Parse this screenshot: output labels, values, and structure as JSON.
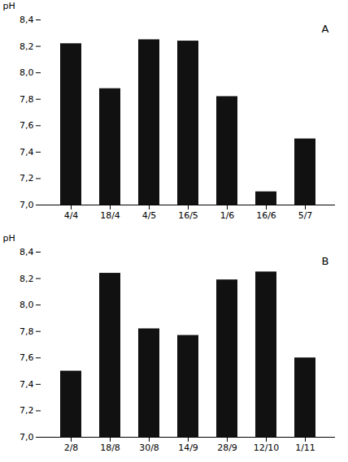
{
  "chart_data": [
    {
      "type": "bar",
      "annotation": "A",
      "ylabel": "pH",
      "categories": [
        "4/4",
        "18/4",
        "4/5",
        "16/5",
        "1/6",
        "16/6",
        "5/7"
      ],
      "values": [
        8.22,
        7.88,
        8.25,
        8.24,
        7.82,
        7.1,
        7.5
      ],
      "color": "#111111",
      "ylim": [
        7.0,
        8.4
      ],
      "yticks": [
        {
          "value": 7.0,
          "label": "7,0"
        },
        {
          "value": 7.2,
          "label": "7,2"
        },
        {
          "value": 7.4,
          "label": "7,4"
        },
        {
          "value": 7.6,
          "label": "7,6"
        },
        {
          "value": 7.8,
          "label": "7,8"
        },
        {
          "value": 8.0,
          "label": "8,0"
        },
        {
          "value": 8.2,
          "label": "8,2"
        },
        {
          "value": 8.4,
          "label": "8,4"
        }
      ],
      "grid": false
    },
    {
      "type": "bar",
      "annotation": "B",
      "ylabel": "pH",
      "categories": [
        "2/8",
        "18/8",
        "30/8",
        "14/9",
        "28/9",
        "12/10",
        "1/11"
      ],
      "values": [
        7.5,
        8.24,
        7.82,
        7.77,
        8.19,
        8.25,
        7.6
      ],
      "color": "#111111",
      "ylim": [
        7.0,
        8.4
      ],
      "yticks": [
        {
          "value": 7.0,
          "label": "7,0"
        },
        {
          "value": 7.2,
          "label": "7,2"
        },
        {
          "value": 7.4,
          "label": "7,4"
        },
        {
          "value": 7.6,
          "label": "7,6"
        },
        {
          "value": 7.8,
          "label": "7,8"
        },
        {
          "value": 8.0,
          "label": "8,0"
        },
        {
          "value": 8.2,
          "label": "8,2"
        },
        {
          "value": 8.4,
          "label": "8,4"
        }
      ],
      "grid": false
    }
  ]
}
